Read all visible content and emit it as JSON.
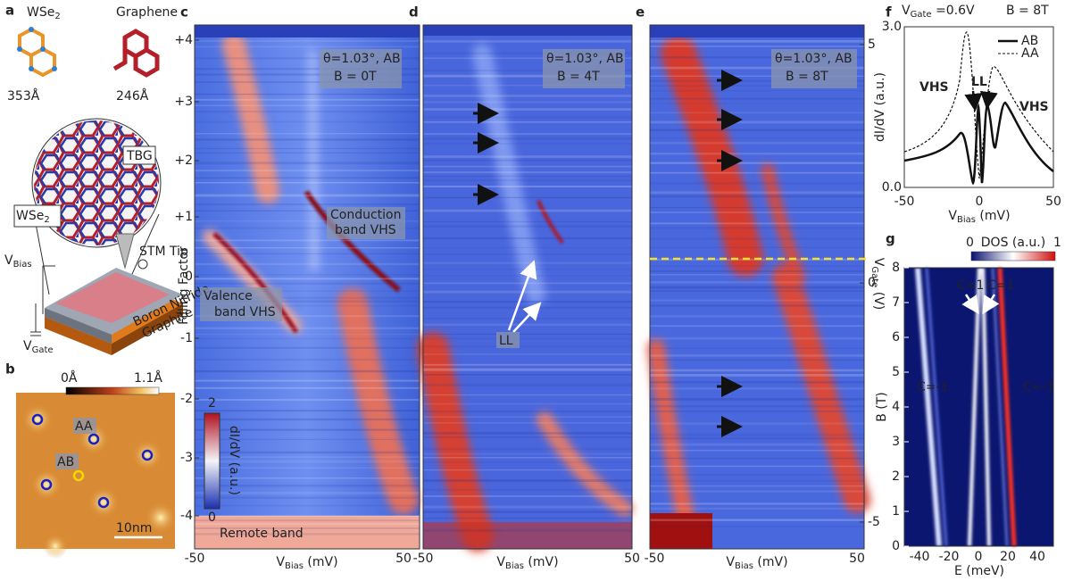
{
  "panels": {
    "a": {
      "label": "a",
      "wse2": [
        "WSe",
        "2"
      ],
      "graphene": "Graphene",
      "wse2_lattice": "353Å",
      "graphene_lattice": "246Å",
      "tbg": "TBG",
      "wse2_layer": [
        "WSe",
        "2"
      ],
      "stm_tip": "STM Tip",
      "v_bias": [
        "V",
        "Bias"
      ],
      "v_gate": [
        "V",
        "Gate"
      ],
      "boron_nitride": "Boron Nitride",
      "graphite": "Graphite"
    },
    "b": {
      "label": "b",
      "colorbar_min": "0Å",
      "colorbar_max": "1.1Å",
      "aa": "AA",
      "ab": "AB",
      "scale_bar": "10nm"
    },
    "c": {
      "label": "c",
      "angle": "θ=1.03°, AB",
      "field": "B = 0T",
      "conduction": [
        "Conduction",
        "band VHS"
      ],
      "valence": [
        "Valence",
        "band VHS"
      ],
      "remote": "Remote band",
      "colorbar_max": "2",
      "colorbar_min": "0",
      "colorbar_label": "dI/dV (a.u.)",
      "y_label": "Filling Factor",
      "y_ticks": [
        "+4",
        "+3",
        "+2",
        "+1",
        "0",
        "-1",
        "-2",
        "-3",
        "-4"
      ],
      "x_ticks": [
        "-50",
        "50"
      ],
      "x_label": [
        "V",
        "Bias",
        " (mV)"
      ]
    },
    "d": {
      "label": "d",
      "angle": "θ=1.03°, AB",
      "field": "B = 4T",
      "ll": "LL",
      "x_ticks": [
        "-50",
        "50"
      ],
      "x_label": [
        "V",
        "Bias",
        " (mV)"
      ]
    },
    "e": {
      "label": "e",
      "angle": "θ=1.03°, AB",
      "field": "B = 8T",
      "right_ticks": [
        "5",
        "0",
        "-5"
      ],
      "right_label": [
        "V",
        "Gate",
        " (V)"
      ],
      "x_ticks": [
        "-50",
        "50"
      ],
      "x_label": [
        "V",
        "Bias",
        " (mV)"
      ]
    },
    "f": {
      "label": "f",
      "title_left": [
        "V",
        "Gate",
        " =0.6V"
      ],
      "title_right": "B = 8T",
      "legend": [
        "AB",
        "AA"
      ],
      "vhs_left": "VHS",
      "ll": "LL",
      "vhs_right": "VHS",
      "y_label": "dI/dV (a.u.)",
      "y_ticks": [
        "0.0",
        "3.0"
      ],
      "x_ticks": [
        "-50",
        "0",
        "50"
      ],
      "x_label": [
        "V",
        "Bias",
        " (mV)"
      ]
    },
    "g": {
      "label": "g",
      "colorbar_min": "0",
      "colorbar_label": "DOS (a.u.)",
      "colorbar_max": "1",
      "chern": [
        "C=1",
        "C=1",
        "C=-1",
        "C=-1"
      ],
      "y_label": "B (T)",
      "y_ticks": [
        "0",
        "1",
        "2",
        "3",
        "4",
        "5",
        "6",
        "7",
        "8"
      ],
      "x_ticks": [
        "-40",
        "-20",
        "0",
        "20",
        "40"
      ],
      "x_label": "E (meV)"
    }
  }
}
